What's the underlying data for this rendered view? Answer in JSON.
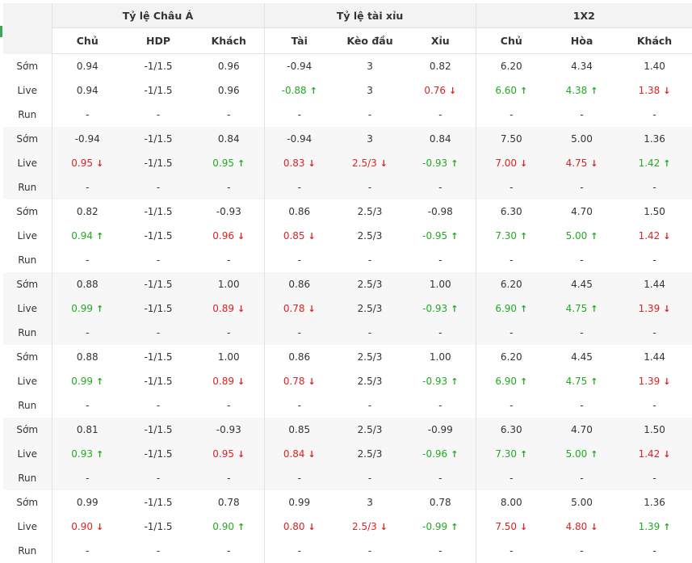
{
  "headers": {
    "groups": [
      "Tỷ lệ Châu Á",
      "Tỷ lệ tài xỉu",
      "1X2"
    ],
    "sub": [
      "Chủ",
      "HDP",
      "Khách",
      "Tài",
      "Kèo đầu",
      "Xỉu",
      "Chủ",
      "Hòa",
      "Khách"
    ]
  },
  "labels": {
    "early": "Sớm",
    "live": "Live",
    "run": "Run"
  },
  "run_placeholder": "-",
  "colors": {
    "up": "#22aa22",
    "down": "#dd2222",
    "run_label": "#dd3333",
    "header_bg": "#f3f3f3",
    "shade_bg": "#f7f7f7",
    "accent": "#3aa757"
  },
  "blocks": [
    {
      "early": [
        "0.94",
        "-1/1.5",
        "0.96",
        "-0.94",
        "3",
        "0.82",
        "6.20",
        "4.34",
        "1.40"
      ],
      "live": [
        {
          "v": "0.94"
        },
        {
          "v": "-1/1.5"
        },
        {
          "v": "0.96"
        },
        {
          "v": "-0.88",
          "d": "up"
        },
        {
          "v": "3"
        },
        {
          "v": "0.76",
          "d": "down"
        },
        {
          "v": "6.60",
          "d": "up"
        },
        {
          "v": "4.38",
          "d": "up"
        },
        {
          "v": "1.38",
          "d": "down"
        }
      ]
    },
    {
      "early": [
        "-0.94",
        "-1/1.5",
        "0.84",
        "-0.94",
        "3",
        "0.84",
        "7.50",
        "5.00",
        "1.36"
      ],
      "live": [
        {
          "v": "0.95",
          "d": "down"
        },
        {
          "v": "-1/1.5"
        },
        {
          "v": "0.95",
          "d": "up"
        },
        {
          "v": "0.83",
          "d": "down"
        },
        {
          "v": "2.5/3",
          "d": "down"
        },
        {
          "v": "-0.93",
          "d": "up"
        },
        {
          "v": "7.00",
          "d": "down"
        },
        {
          "v": "4.75",
          "d": "down"
        },
        {
          "v": "1.42",
          "d": "up"
        }
      ]
    },
    {
      "early": [
        "0.82",
        "-1/1.5",
        "-0.93",
        "0.86",
        "2.5/3",
        "-0.98",
        "6.30",
        "4.70",
        "1.50"
      ],
      "live": [
        {
          "v": "0.94",
          "d": "up"
        },
        {
          "v": "-1/1.5"
        },
        {
          "v": "0.96",
          "d": "down"
        },
        {
          "v": "0.85",
          "d": "down"
        },
        {
          "v": "2.5/3"
        },
        {
          "v": "-0.95",
          "d": "up"
        },
        {
          "v": "7.30",
          "d": "up"
        },
        {
          "v": "5.00",
          "d": "up"
        },
        {
          "v": "1.42",
          "d": "down"
        }
      ]
    },
    {
      "early": [
        "0.88",
        "-1/1.5",
        "1.00",
        "0.86",
        "2.5/3",
        "1.00",
        "6.20",
        "4.45",
        "1.44"
      ],
      "live": [
        {
          "v": "0.99",
          "d": "up"
        },
        {
          "v": "-1/1.5"
        },
        {
          "v": "0.89",
          "d": "down"
        },
        {
          "v": "0.78",
          "d": "down"
        },
        {
          "v": "2.5/3"
        },
        {
          "v": "-0.93",
          "d": "up"
        },
        {
          "v": "6.90",
          "d": "up"
        },
        {
          "v": "4.75",
          "d": "up"
        },
        {
          "v": "1.39",
          "d": "down"
        }
      ]
    },
    {
      "early": [
        "0.88",
        "-1/1.5",
        "1.00",
        "0.86",
        "2.5/3",
        "1.00",
        "6.20",
        "4.45",
        "1.44"
      ],
      "live": [
        {
          "v": "0.99",
          "d": "up"
        },
        {
          "v": "-1/1.5"
        },
        {
          "v": "0.89",
          "d": "down"
        },
        {
          "v": "0.78",
          "d": "down"
        },
        {
          "v": "2.5/3"
        },
        {
          "v": "-0.93",
          "d": "up"
        },
        {
          "v": "6.90",
          "d": "up"
        },
        {
          "v": "4.75",
          "d": "up"
        },
        {
          "v": "1.39",
          "d": "down"
        }
      ]
    },
    {
      "early": [
        "0.81",
        "-1/1.5",
        "-0.93",
        "0.85",
        "2.5/3",
        "-0.99",
        "6.30",
        "4.70",
        "1.50"
      ],
      "live": [
        {
          "v": "0.93",
          "d": "up"
        },
        {
          "v": "-1/1.5"
        },
        {
          "v": "0.95",
          "d": "down"
        },
        {
          "v": "0.84",
          "d": "down"
        },
        {
          "v": "2.5/3"
        },
        {
          "v": "-0.96",
          "d": "up"
        },
        {
          "v": "7.30",
          "d": "up"
        },
        {
          "v": "5.00",
          "d": "up"
        },
        {
          "v": "1.42",
          "d": "down"
        }
      ]
    },
    {
      "early": [
        "0.99",
        "-1/1.5",
        "0.78",
        "0.99",
        "3",
        "0.78",
        "8.00",
        "5.00",
        "1.36"
      ],
      "live": [
        {
          "v": "0.90",
          "d": "down"
        },
        {
          "v": "-1/1.5"
        },
        {
          "v": "0.90",
          "d": "up"
        },
        {
          "v": "0.80",
          "d": "down"
        },
        {
          "v": "2.5/3",
          "d": "down"
        },
        {
          "v": "-0.99",
          "d": "up"
        },
        {
          "v": "7.50",
          "d": "down"
        },
        {
          "v": "4.80",
          "d": "down"
        },
        {
          "v": "1.39",
          "d": "up"
        }
      ]
    }
  ]
}
